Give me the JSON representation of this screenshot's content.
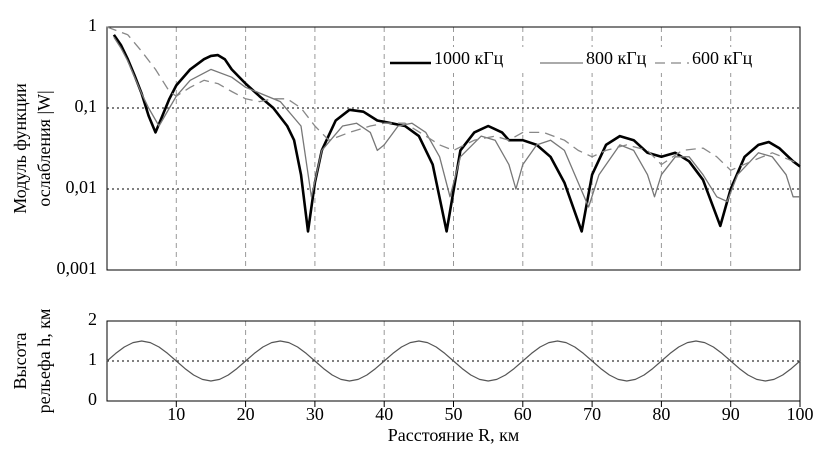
{
  "chart_data": [
    {
      "type": "line",
      "log_y": true,
      "ylabel": [
        "Модуль функции",
        "ослабления |W|"
      ],
      "xlim": [
        0,
        100
      ],
      "ylim": [
        0.001,
        1
      ],
      "yticks": [
        {
          "value": 0.001,
          "label": "0,001"
        },
        {
          "value": 0.01,
          "label": "0,01"
        },
        {
          "value": 0.1,
          "label": "0,1"
        },
        1
      ],
      "grid": true,
      "legend": "upper right",
      "series": [
        {
          "name": "1000 кГц",
          "color": "#000000",
          "line_width": 2.6,
          "dash": false,
          "x": [
            1,
            2,
            3,
            4,
            5,
            6,
            7,
            8,
            9,
            10,
            12,
            14,
            15,
            16,
            17,
            18,
            20,
            22,
            24,
            26,
            27,
            28,
            29,
            30,
            31,
            33,
            35,
            37,
            39,
            41,
            43,
            45,
            47,
            49,
            51,
            53,
            55,
            57,
            58,
            60,
            62,
            64,
            66,
            68.5,
            70,
            72,
            74,
            76,
            78,
            80,
            82,
            84,
            86,
            88.5,
            90,
            92,
            94,
            95.5,
            97,
            99,
            100
          ],
          "values": [
            0.8,
            0.6,
            0.4,
            0.25,
            0.15,
            0.08,
            0.05,
            0.08,
            0.13,
            0.19,
            0.3,
            0.4,
            0.44,
            0.45,
            0.4,
            0.3,
            0.2,
            0.14,
            0.1,
            0.06,
            0.04,
            0.015,
            0.003,
            0.012,
            0.03,
            0.07,
            0.095,
            0.09,
            0.07,
            0.065,
            0.06,
            0.045,
            0.02,
            0.003,
            0.03,
            0.05,
            0.06,
            0.05,
            0.04,
            0.04,
            0.035,
            0.025,
            0.012,
            0.003,
            0.015,
            0.035,
            0.045,
            0.04,
            0.028,
            0.025,
            0.028,
            0.022,
            0.013,
            0.0035,
            0.01,
            0.025,
            0.035,
            0.038,
            0.032,
            0.022,
            0.019
          ]
        },
        {
          "name": "800 кГц",
          "color": "#777777",
          "line_width": 1.3,
          "dash": false,
          "x": [
            1,
            2,
            3,
            4,
            5,
            6,
            7.5,
            9,
            10,
            12,
            15,
            18,
            20,
            25,
            28,
            29.5,
            31,
            34,
            36,
            38,
            39,
            40,
            42,
            44,
            46,
            48,
            49.5,
            51,
            54,
            56,
            58,
            59,
            60,
            62,
            64,
            66,
            68,
            69.5,
            71,
            74,
            76,
            78,
            79,
            80,
            82,
            84,
            86,
            88,
            89.5,
            91,
            94,
            96,
            98,
            99,
            100
          ],
          "values": [
            0.75,
            0.55,
            0.38,
            0.24,
            0.15,
            0.1,
            0.06,
            0.1,
            0.14,
            0.22,
            0.3,
            0.24,
            0.18,
            0.12,
            0.06,
            0.008,
            0.03,
            0.06,
            0.065,
            0.05,
            0.03,
            0.035,
            0.06,
            0.065,
            0.05,
            0.025,
            0.008,
            0.025,
            0.045,
            0.04,
            0.02,
            0.01,
            0.02,
            0.035,
            0.04,
            0.03,
            0.012,
            0.006,
            0.015,
            0.035,
            0.03,
            0.015,
            0.008,
            0.015,
            0.025,
            0.025,
            0.015,
            0.008,
            0.007,
            0.015,
            0.028,
            0.025,
            0.015,
            0.008,
            0.008
          ]
        },
        {
          "name": "600 кГц",
          "color": "#888888",
          "line_width": 1.3,
          "dash": true,
          "x": [
            0,
            3,
            5,
            7,
            9,
            10,
            12,
            14,
            16,
            18,
            20,
            22,
            24,
            26,
            28,
            30,
            32,
            35,
            38,
            40,
            43,
            46,
            48,
            50,
            53,
            56,
            58,
            60,
            63,
            66,
            68,
            70,
            72,
            75,
            78,
            80,
            83,
            86,
            88,
            90,
            93,
            96,
            99,
            100
          ],
          "values": [
            1.0,
            0.8,
            0.5,
            0.3,
            0.16,
            0.14,
            0.18,
            0.22,
            0.2,
            0.16,
            0.13,
            0.12,
            0.13,
            0.13,
            0.1,
            0.06,
            0.04,
            0.05,
            0.06,
            0.065,
            0.065,
            0.045,
            0.035,
            0.03,
            0.04,
            0.045,
            0.04,
            0.05,
            0.05,
            0.04,
            0.03,
            0.025,
            0.03,
            0.035,
            0.03,
            0.02,
            0.03,
            0.032,
            0.025,
            0.017,
            0.022,
            0.028,
            0.022,
            0.02
          ]
        }
      ]
    },
    {
      "type": "line",
      "log_y": false,
      "ylabel": [
        "Высота",
        "рельефа h, км"
      ],
      "xlabel": "Расстояние R, км",
      "xlim": [
        0,
        100
      ],
      "ylim": [
        0,
        2
      ],
      "xticks": [
        10,
        20,
        30,
        40,
        50,
        60,
        70,
        80,
        90,
        100
      ],
      "yticks": [
        0,
        1,
        2
      ],
      "grid": true,
      "series": [
        {
          "color": "#555555",
          "line_width": 1.2,
          "dash": false,
          "x": [
            0,
            1.25,
            2.5,
            3.75,
            5,
            6.25,
            7.5,
            8.75,
            10,
            11.25,
            12.5,
            13.75,
            15,
            16.25,
            17.5,
            18.75,
            20,
            21.25,
            22.5,
            23.75,
            25,
            26.25,
            27.5,
            28.75,
            30,
            31.25,
            32.5,
            33.75,
            35,
            36.25,
            37.5,
            38.75,
            40,
            41.25,
            42.5,
            43.75,
            45,
            46.25,
            47.5,
            48.75,
            50,
            51.25,
            52.5,
            53.75,
            55,
            56.25,
            57.5,
            58.75,
            60,
            61.25,
            62.5,
            63.75,
            65,
            66.25,
            67.5,
            68.75,
            70,
            71.25,
            72.5,
            73.75,
            75,
            76.25,
            77.5,
            78.75,
            80,
            81.25,
            82.5,
            83.75,
            85,
            86.25,
            87.5,
            88.75,
            90,
            91.25,
            92.5,
            93.75,
            95,
            96.25,
            97.5,
            98.75,
            100
          ],
          "values": [
            1,
            1.19,
            1.35,
            1.46,
            1.5,
            1.46,
            1.35,
            1.19,
            1,
            0.81,
            0.65,
            0.54,
            0.5,
            0.54,
            0.65,
            0.81,
            1,
            1.19,
            1.35,
            1.46,
            1.5,
            1.46,
            1.35,
            1.19,
            1,
            0.81,
            0.65,
            0.54,
            0.5,
            0.54,
            0.65,
            0.81,
            1,
            1.19,
            1.35,
            1.46,
            1.5,
            1.46,
            1.35,
            1.19,
            1,
            0.81,
            0.65,
            0.54,
            0.5,
            0.54,
            0.65,
            0.81,
            1,
            1.19,
            1.35,
            1.46,
            1.5,
            1.46,
            1.35,
            1.19,
            1,
            0.81,
            0.65,
            0.54,
            0.5,
            0.54,
            0.65,
            0.81,
            1,
            1.19,
            1.35,
            1.46,
            1.5,
            1.46,
            1.35,
            1.19,
            1,
            0.81,
            0.65,
            0.54,
            0.5,
            0.54,
            0.65,
            0.81,
            1
          ]
        }
      ]
    }
  ]
}
